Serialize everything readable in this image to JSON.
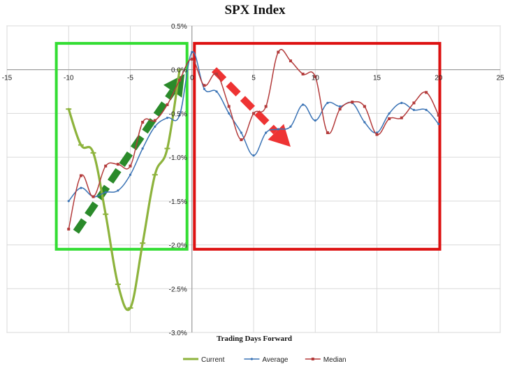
{
  "chart_data": {
    "type": "line",
    "title": "SPX Index",
    "xlabel": "Trading Days Forward",
    "ylabel": "",
    "xlim": [
      -15,
      25
    ],
    "ylim": [
      -3.0,
      0.5
    ],
    "x_ticks": [
      -15,
      -10,
      -5,
      0,
      5,
      10,
      15,
      20,
      25
    ],
    "x_tick_labels": [
      "-15",
      "-10",
      "-5",
      "0",
      "5",
      "10",
      "15",
      "20",
      "25"
    ],
    "y_ticks": [
      0.5,
      0.0,
      -0.5,
      -1.0,
      -1.5,
      -2.0,
      -2.5,
      -3.0
    ],
    "y_tick_labels": [
      "0.5%",
      "0.0%",
      "-0.5%",
      "-1.0%",
      "-1.5%",
      "-2.0%",
      "-2.5%",
      "-3.0%"
    ],
    "grid": true,
    "legend_position": "bottom",
    "series": [
      {
        "name": "Current",
        "color": "#8db33c",
        "x": [
          -10,
          -9,
          -8,
          -7,
          -6,
          -5,
          -4,
          -3,
          -2,
          -1
        ],
        "values": [
          -0.45,
          -0.86,
          -0.95,
          -1.65,
          -2.45,
          -2.72,
          -1.98,
          -1.2,
          -0.9,
          0.0
        ]
      },
      {
        "name": "Average",
        "color": "#3a73b5",
        "x": [
          -10,
          -9,
          -8,
          -7,
          -6,
          -5,
          -4,
          -3,
          -2,
          -1,
          0,
          1,
          2,
          3,
          4,
          5,
          6,
          7,
          8,
          9,
          10,
          11,
          12,
          13,
          14,
          15,
          16,
          17,
          18,
          19,
          20
        ],
        "values": [
          -1.5,
          -1.35,
          -1.45,
          -1.4,
          -1.38,
          -1.2,
          -0.9,
          -0.65,
          -0.55,
          -0.52,
          0.2,
          -0.22,
          -0.25,
          -0.5,
          -0.72,
          -0.98,
          -0.72,
          -0.68,
          -0.65,
          -0.4,
          -0.58,
          -0.38,
          -0.42,
          -0.38,
          -0.6,
          -0.72,
          -0.5,
          -0.38,
          -0.46,
          -0.46,
          -0.62
        ]
      },
      {
        "name": "Median",
        "color": "#b33a3a",
        "x": [
          -10,
          -9,
          -8,
          -7,
          -6,
          -5,
          -4,
          -3,
          -2,
          -1,
          0,
          1,
          2,
          3,
          4,
          5,
          6,
          7,
          8,
          9,
          10,
          11,
          12,
          13,
          14,
          15,
          16,
          17,
          18,
          19,
          20
        ],
        "values": [
          -1.82,
          -1.21,
          -1.45,
          -1.1,
          -1.08,
          -1.1,
          -0.6,
          -0.58,
          -0.4,
          -0.12,
          0.12,
          -0.18,
          -0.05,
          -0.42,
          -0.8,
          -0.5,
          -0.42,
          0.2,
          0.1,
          -0.05,
          -0.08,
          -0.72,
          -0.45,
          -0.37,
          -0.42,
          -0.74,
          -0.56,
          -0.55,
          -0.38,
          -0.26,
          -0.52
        ]
      }
    ],
    "annotations": [
      {
        "kind": "box",
        "color": "#33dd33",
        "x": [
          -11,
          -0.4
        ],
        "y": [
          -2.05,
          0.3
        ]
      },
      {
        "kind": "box",
        "color": "#dd1111",
        "x": [
          0.2,
          20.1
        ],
        "y": [
          -2.05,
          0.3
        ]
      },
      {
        "kind": "dashed-arrow",
        "color": "#2a8a2a",
        "from": [
          -9.4,
          -1.85
        ],
        "to": [
          -0.6,
          -0.05
        ]
      },
      {
        "kind": "dashed-arrow",
        "color": "#ee3333",
        "from": [
          1.8,
          0.0
        ],
        "to": [
          8.0,
          -0.88
        ]
      }
    ]
  }
}
